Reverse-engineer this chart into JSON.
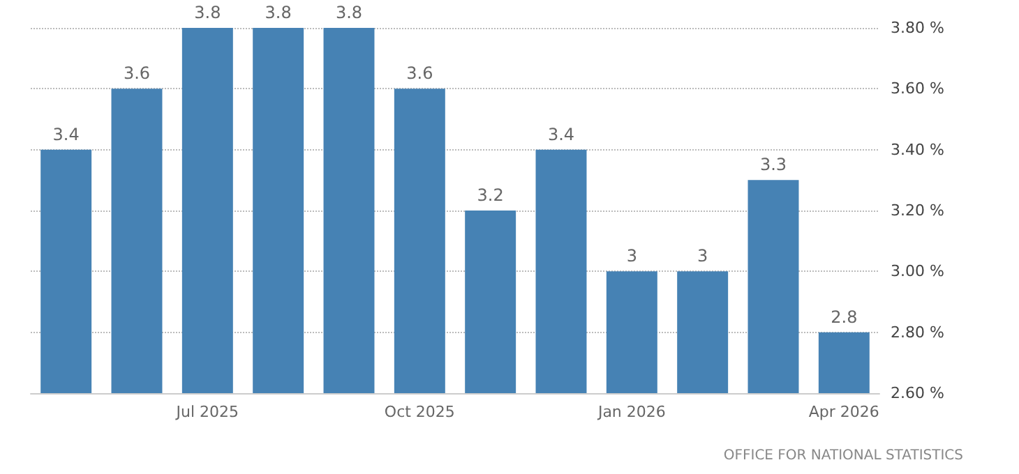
{
  "chart_data": {
    "type": "bar",
    "categories": [
      null,
      null,
      "Jul 2025",
      null,
      null,
      "Oct 2025",
      null,
      null,
      "Jan 2026",
      null,
      null,
      "Apr 2026"
    ],
    "values": [
      3.4,
      3.6,
      3.8,
      3.8,
      3.8,
      3.6,
      3.2,
      3.4,
      3,
      3,
      3.3,
      2.8
    ],
    "color": "#4682b4",
    "ylim": [
      2.6,
      3.8
    ],
    "yticks": [
      {
        "value": 2.6,
        "label": "2.60 %"
      },
      {
        "value": 2.8,
        "label": "2.80 %"
      },
      {
        "value": 3.0,
        "label": "3.00 %"
      },
      {
        "value": 3.2,
        "label": "3.20 %"
      },
      {
        "value": 3.4,
        "label": "3.40 %"
      },
      {
        "value": 3.6,
        "label": "3.60 %"
      },
      {
        "value": 3.8,
        "label": "3.80 %"
      }
    ],
    "grid": "y",
    "data_labels": true,
    "annotations": [
      "OFFICE FOR NATIONAL STATISTICS"
    ]
  }
}
